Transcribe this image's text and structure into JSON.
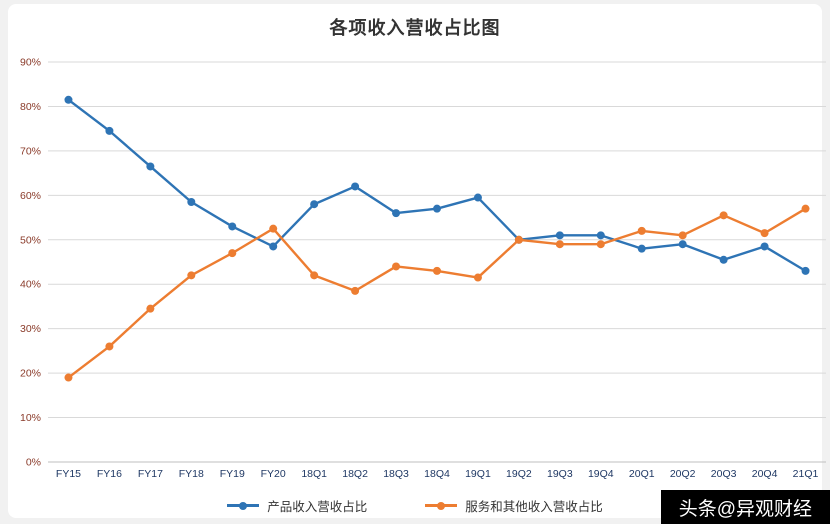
{
  "chart_data": {
    "type": "line",
    "title": "各项收入营收占比图",
    "categories": [
      "FY15",
      "FY16",
      "FY17",
      "FY18",
      "FY19",
      "FY20",
      "18Q1",
      "18Q2",
      "18Q3",
      "18Q4",
      "19Q1",
      "19Q2",
      "19Q3",
      "19Q4",
      "20Q1",
      "20Q2",
      "20Q3",
      "20Q4",
      "21Q1"
    ],
    "series": [
      {
        "name": "产品收入营收占比",
        "color": "#2E74B5",
        "values": [
          81.5,
          74.5,
          66.5,
          58.5,
          53,
          48.5,
          58,
          62,
          56,
          57,
          59.5,
          50,
          51,
          51,
          48,
          49,
          45.5,
          48.5,
          43
        ]
      },
      {
        "name": "服务和其他收入营收占比",
        "color": "#ED7D31",
        "values": [
          19,
          26,
          34.5,
          42,
          47,
          52.5,
          42,
          38.5,
          44,
          43,
          41.5,
          50,
          49,
          49,
          52,
          51,
          55.5,
          51.5,
          57
        ]
      }
    ],
    "ylim": [
      0,
      90
    ],
    "ytick_step": 10,
    "ytick_format": "percent",
    "grid": true,
    "legend_position": "bottom"
  },
  "axis_style": {
    "y_label_color": "#8A3B2A",
    "x_label_color": "#1F3864",
    "grid_color": "#D9D9D9",
    "axis_line_color": "#BFBFBF"
  },
  "watermark": {
    "text": "头条@异观财经",
    "bg": "#000000",
    "fg": "#FFFFFF"
  }
}
